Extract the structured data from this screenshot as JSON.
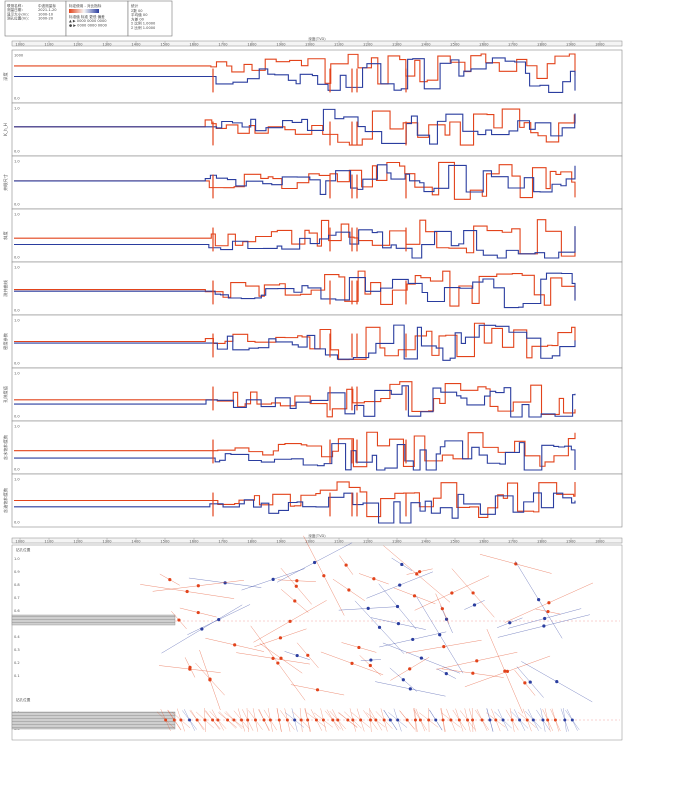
{
  "header": {
    "info_rows": [
      [
        "联测名称：",
        "中波测量标"
      ],
      [
        "测量日期：",
        "2021-1-20"
      ],
      [
        "显示大小(m)：",
        "1000-10"
      ],
      [
        "测孔位置(m)：",
        "1000-20"
      ]
    ],
    "legend_title": "标定使用 - 对比指标",
    "legend_rows": [
      "标准值  标准  更低  偏差",
      "▲  ▶  0000  0000  0000",
      "●  ▶  0000  0000  0000"
    ],
    "stat_title": "统计",
    "stat_rows": [
      "Σ数   00",
      "平均值 00",
      "方差  00",
      "Σ 比例 1.0000",
      "Σ 比例 1.0000"
    ]
  },
  "top_axis": {
    "title": "深度(TVD)",
    "ticks": [
      "1000",
      "1100",
      "1200",
      "1300",
      "1400",
      "1500",
      "1600",
      "1700",
      "1800",
      "1900",
      "2000",
      "2100",
      "2200",
      "2300",
      "2400",
      "2500",
      "2600",
      "2700",
      "2800",
      "2900",
      "3000"
    ]
  },
  "bottom_axis": {
    "title": "深度(TVD)",
    "ticks": [
      "1000",
      "1100",
      "1200",
      "1300",
      "1400",
      "1500",
      "1600",
      "1700",
      "1800",
      "1900",
      "2000",
      "2100",
      "2200",
      "2300",
      "2400",
      "2500",
      "2600",
      "2700",
      "2800",
      "2900",
      "3000"
    ]
  },
  "colors": {
    "red": "#e2431b",
    "blue": "#2a3d9f",
    "axis": "#888888",
    "grid": "#d8d8d8",
    "band": "#bdbdbd"
  },
  "chart_data": [
    {
      "type": "line",
      "panels": [
        {
          "label": "深度",
          "ticks_y": [
            "1000",
            "",
            "",
            "",
            "0.0"
          ],
          "series": [
            {
              "values": []
            },
            {
              "values": []
            }
          ]
        },
        {
          "label": "K_h_H",
          "ticks_y": [
            "1.0",
            "",
            "",
            "",
            "0.0"
          ],
          "series": [
            {
              "values": []
            },
            {
              "values": []
            }
          ]
        },
        {
          "label": "井眼尺寸",
          "ticks_y": [
            "1.0",
            "",
            "",
            "",
            "0.0"
          ],
          "series": [
            {
              "values": []
            },
            {
              "values": []
            }
          ]
        },
        {
          "label": "斜度",
          "ticks_y": [
            "1.0",
            "",
            "",
            "",
            "0.0"
          ],
          "series": [
            {
              "values": []
            },
            {
              "values": []
            }
          ]
        },
        {
          "label": "测井曲线",
          "ticks_y": [
            "1.0",
            "",
            "",
            "",
            "0.0"
          ],
          "series": [
            {
              "values": []
            },
            {
              "values": []
            }
          ]
        },
        {
          "label": "密度参数",
          "ticks_y": [
            "1.0",
            "",
            "",
            "",
            "0.0"
          ],
          "series": [
            {
              "values": []
            },
            {
              "values": []
            }
          ]
        },
        {
          "label": "孔隙度值",
          "ticks_y": [
            "1.0",
            "",
            "",
            "",
            "0.0"
          ],
          "series": [
            {
              "values": []
            },
            {
              "values": []
            }
          ]
        },
        {
          "label": "含水饱和度数",
          "ticks_y": [
            "1.0",
            "",
            "",
            "",
            "0.0"
          ],
          "series": [
            {
              "values": []
            },
            {
              "values": []
            }
          ]
        },
        {
          "label": "含油饱和度数",
          "ticks_y": [
            "1.0",
            "",
            "",
            "",
            "0.0"
          ],
          "series": [
            {
              "values": []
            },
            {
              "values": []
            }
          ]
        }
      ],
      "x_range": [
        1000,
        3000
      ]
    },
    {
      "type": "scatter",
      "subtitle_top": "钻孔位置",
      "subtitle_bottom": "钻孔位置",
      "x_range": [
        1000,
        3000
      ],
      "y_ticks_top": [
        "1.0",
        "0.9",
        "0.8",
        "0.7",
        "0.6",
        "0.5",
        "0.4",
        "0.3",
        "0.2",
        "0.1"
      ],
      "y_ticks_bottom": [
        "1.0",
        "0.5",
        "0.0"
      ]
    }
  ]
}
